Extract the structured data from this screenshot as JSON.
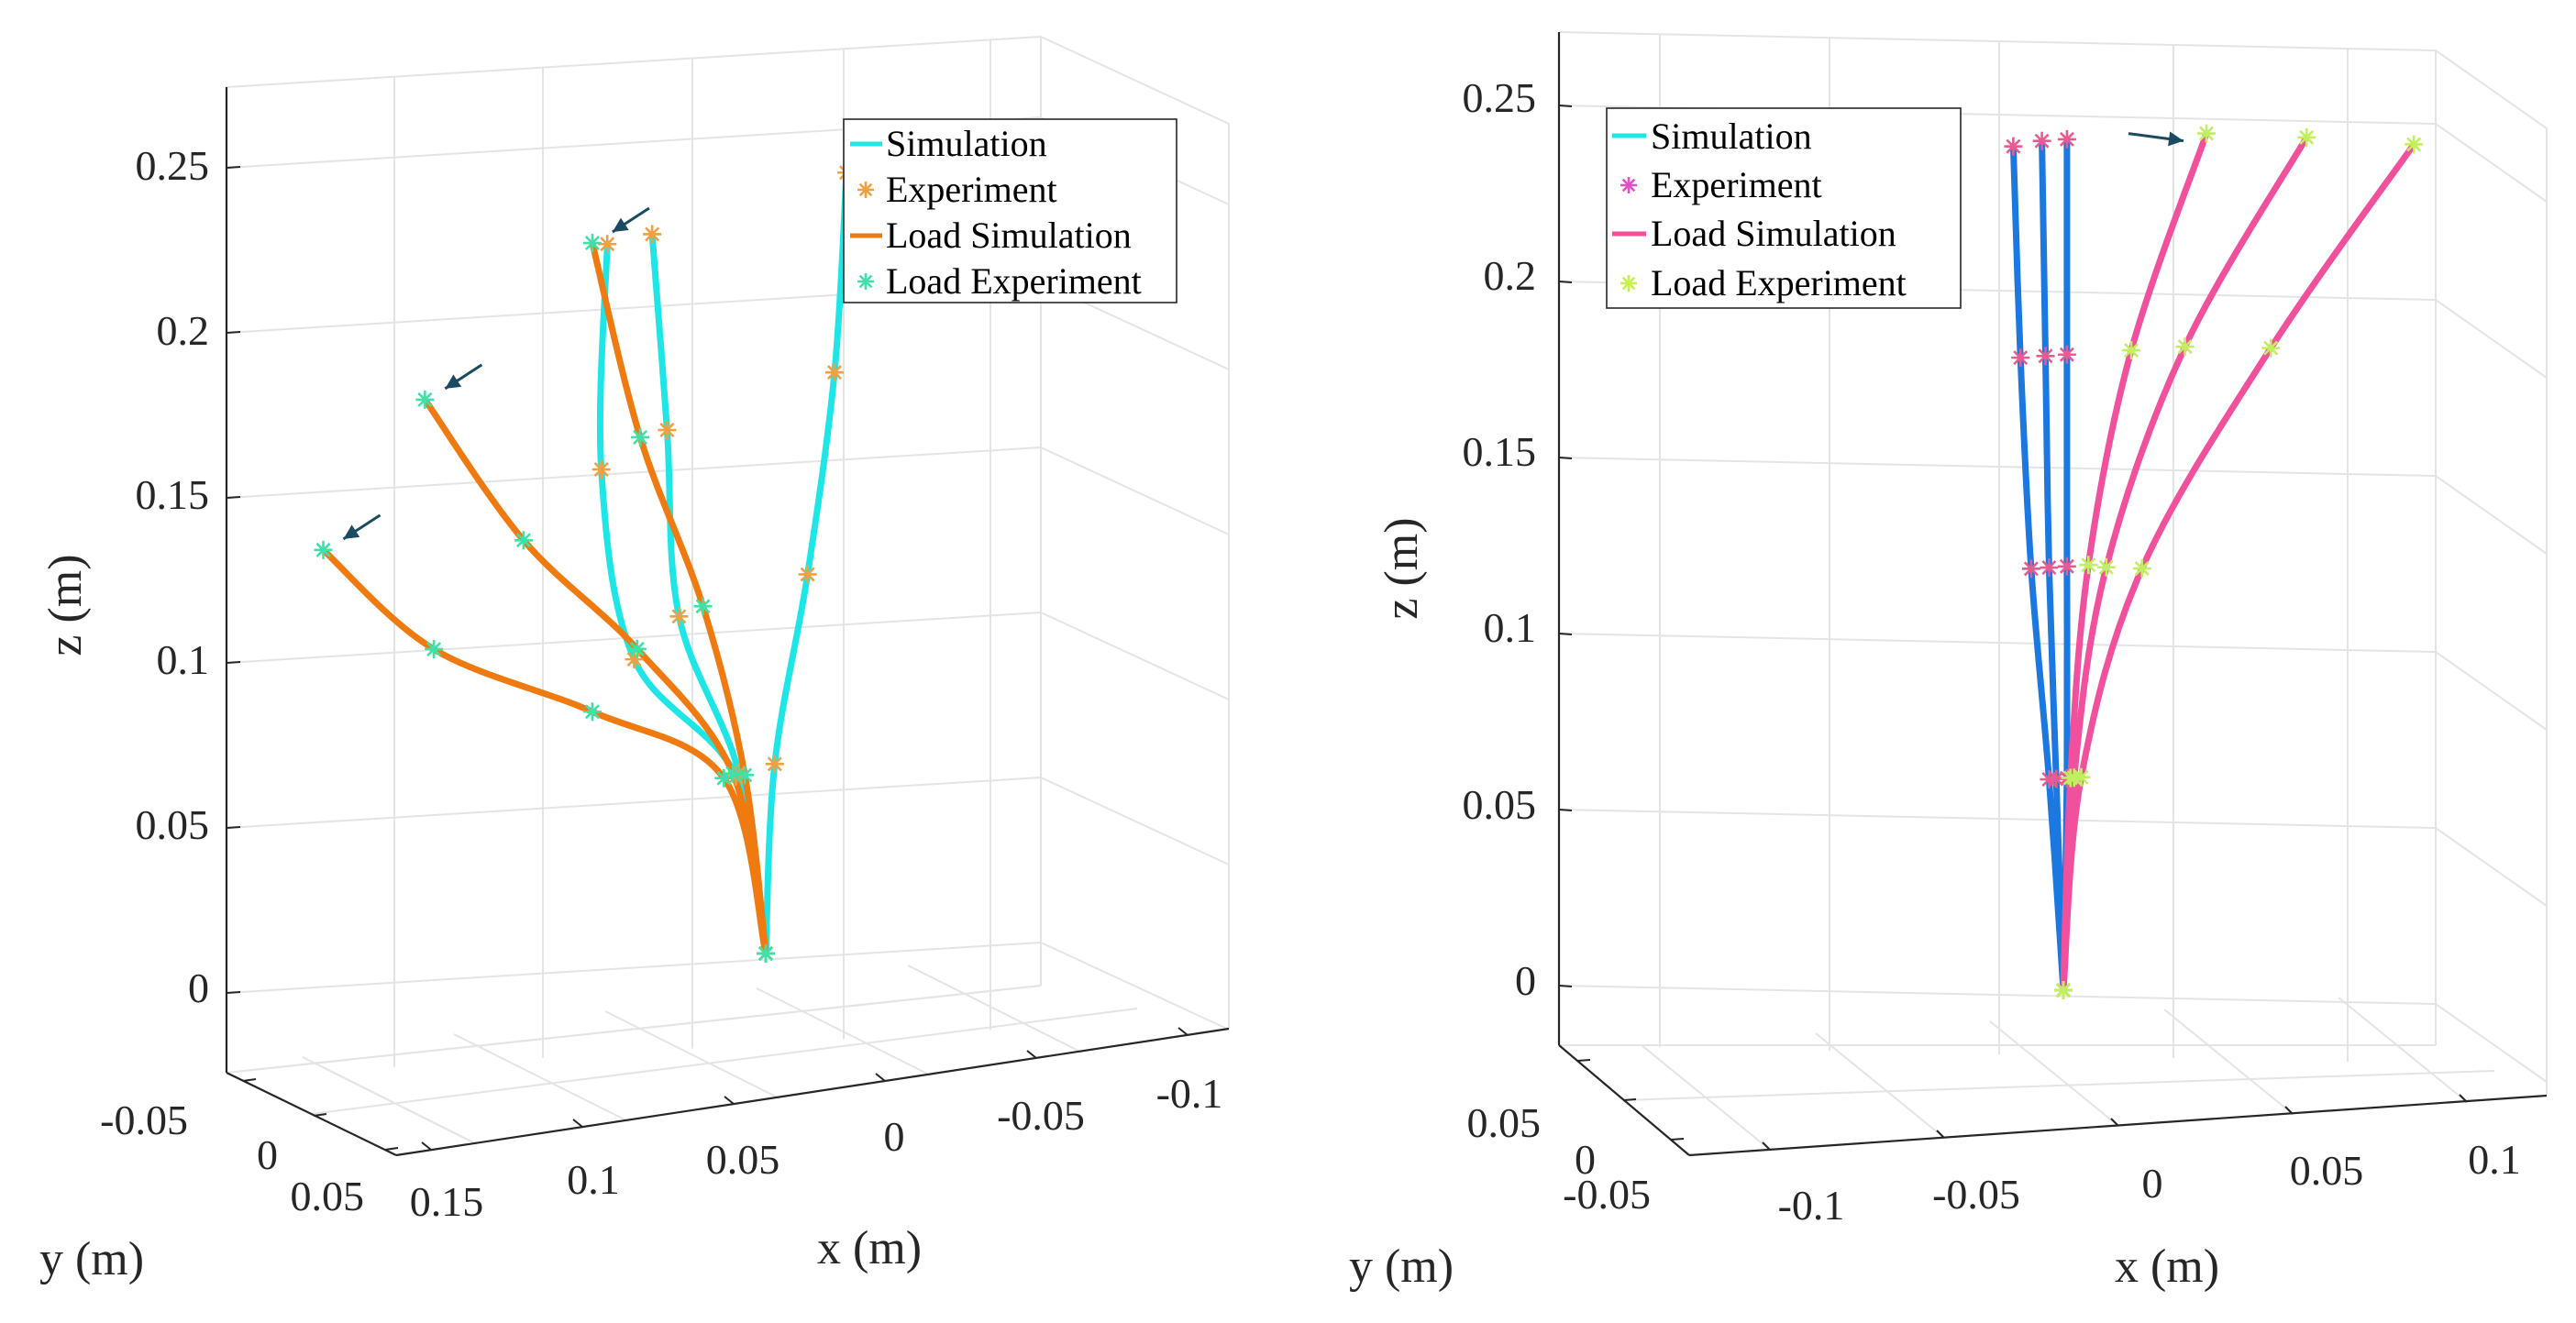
{
  "chart_data": [
    {
      "type": "line",
      "panel": "left",
      "xlabel": "x (m)",
      "ylabel": "y (m)",
      "zlabel": "z (m)",
      "xticks": [
        "0.15",
        "0.1",
        "0.05",
        "0",
        "-0.05",
        "-0.1"
      ],
      "yticks": [
        "-0.05",
        "0",
        "0.05"
      ],
      "zticks": [
        "0.25",
        "0.2",
        "0.15",
        "0.1",
        "0.05",
        "0"
      ],
      "zlim": [
        -0.02,
        0.27
      ],
      "legend": {
        "position": "top-right",
        "entries": [
          {
            "label": "Simulation",
            "kind": "line",
            "color": "#1ee6e6"
          },
          {
            "label": "Experiment",
            "kind": "star",
            "color": "#f0a040"
          },
          {
            "label": "Load Simulation",
            "kind": "line",
            "color": "#ee7a10"
          },
          {
            "label": "Load Experiment",
            "kind": "star",
            "color": "#40e0a8"
          }
        ]
      },
      "colors": {
        "simulation": "#1ee6e6",
        "experiment": "#f0a040",
        "load_simulation": "#ee7a10",
        "load_experiment": "#40e0a8",
        "arrow": "#1b4a63"
      },
      "series": [
        {
          "name": "Simulation 1",
          "kind": "simulation",
          "base": [
            0.0,
            0.0
          ],
          "tip": [
            -0.027,
            0.0,
            0.243
          ],
          "experiment": [
            [
              -0.027,
              0.0,
              0.243
            ],
            [
              -0.023,
              0.0,
              0.183
            ],
            [
              -0.014,
              0.0,
              0.123
            ],
            [
              -0.003,
              0.0,
              0.067
            ],
            [
              0.0,
              0.0,
              0.01
            ]
          ]
        },
        {
          "name": "Simulation 2",
          "kind": "simulation",
          "base": [
            0.0,
            0.0
          ],
          "tip": [
            0.038,
            0.0,
            0.233
          ],
          "experiment": [
            [
              0.038,
              0.0,
              0.233
            ],
            [
              0.033,
              0.0,
              0.173
            ],
            [
              0.029,
              0.0,
              0.116
            ],
            [
              0.009,
              0.0,
              0.066
            ],
            [
              0.0,
              0.0,
              0.01
            ]
          ]
        },
        {
          "name": "Simulation 3",
          "kind": "simulation",
          "base": [
            0.0,
            0.0
          ],
          "tip": [
            0.053,
            0.0,
            0.232
          ],
          "experiment": [
            [
              0.053,
              0.0,
              0.232
            ],
            [
              0.055,
              0.0,
              0.164
            ],
            [
              0.044,
              0.0,
              0.105
            ],
            [
              0.01,
              0.0,
              0.065
            ],
            [
              0.0,
              0.0,
              0.01
            ]
          ]
        },
        {
          "name": "Load Simulation 1",
          "kind": "load",
          "base": [
            0.0,
            0.0
          ],
          "tip": [
            0.058,
            0.0,
            0.233
          ],
          "experiment": [
            [
              0.058,
              0.0,
              0.233
            ],
            [
              0.042,
              0.0,
              0.172
            ],
            [
              0.021,
              0.0,
              0.118
            ],
            [
              0.007,
              0.0,
              0.065
            ],
            [
              0.0,
              0.0,
              0.01
            ]
          ]
        },
        {
          "name": "Load Simulation 2",
          "kind": "load",
          "base": [
            0.0,
            0.0
          ],
          "tip": [
            0.114,
            0.0,
            0.193
          ],
          "experiment": [
            [
              0.114,
              0.0,
              0.193
            ],
            [
              0.081,
              0.0,
              0.146
            ],
            [
              0.043,
              0.0,
              0.108
            ],
            [
              0.011,
              0.0,
              0.066
            ],
            [
              0.0,
              0.0,
              0.01
            ]
          ]
        },
        {
          "name": "Load Simulation 3",
          "kind": "load",
          "base": [
            0.0,
            0.0
          ],
          "tip": [
            0.148,
            0.0,
            0.152
          ],
          "experiment": [
            [
              0.148,
              0.0,
              0.152
            ],
            [
              0.111,
              0.0,
              0.117
            ],
            [
              0.058,
              0.0,
              0.091
            ],
            [
              0.014,
              0.0,
              0.065
            ],
            [
              0.0,
              0.0,
              0.01
            ]
          ]
        }
      ]
    },
    {
      "type": "line",
      "panel": "right",
      "xlabel": "x (m)",
      "ylabel": "y (m)",
      "zlabel": "z (m)",
      "xticks": [
        "-0.1",
        "-0.05",
        "0",
        "0.05",
        "0.1"
      ],
      "yticks": [
        "-0.05",
        "0",
        "0.05"
      ],
      "zticks": [
        "0.25",
        "0.2",
        "0.15",
        "0.1",
        "0.05",
        "0"
      ],
      "zlim": [
        -0.02,
        0.27
      ],
      "legend": {
        "position": "top-left",
        "entries": [
          {
            "label": "Simulation",
            "kind": "line",
            "color": "#1ee6e6"
          },
          {
            "label": "Experiment",
            "kind": "star",
            "color": "#e050c8"
          },
          {
            "label": "Load Simulation",
            "kind": "line",
            "color": "#f0509c"
          },
          {
            "label": "Load Experiment",
            "kind": "star",
            "color": "#c8f050"
          }
        ]
      },
      "colors": {
        "simulation": "#1a78e0",
        "experiment": "#e85a90",
        "load_simulation": "#f0509c",
        "load_experiment": "#c0f060",
        "arrow": "#1b4a63"
      },
      "series": [
        {
          "name": "Simulation 1",
          "kind": "simulation",
          "tip": [
            -0.014,
            0.0,
            0.24
          ],
          "experiment": [
            [
              -0.014,
              0.0,
              0.24
            ],
            [
              -0.012,
              0.0,
              0.18
            ],
            [
              -0.009,
              0.0,
              0.12
            ],
            [
              -0.004,
              0.0,
              0.06
            ],
            [
              0.0,
              0.0,
              0.0
            ]
          ]
        },
        {
          "name": "Simulation 2",
          "kind": "simulation",
          "tip": [
            -0.006,
            0.0,
            0.241
          ],
          "experiment": [
            [
              -0.006,
              0.0,
              0.241
            ],
            [
              -0.005,
              0.0,
              0.18
            ],
            [
              -0.004,
              0.0,
              0.12
            ],
            [
              -0.002,
              0.0,
              0.06
            ],
            [
              0.0,
              0.0,
              0.0
            ]
          ]
        },
        {
          "name": "Simulation 3",
          "kind": "simulation",
          "tip": [
            0.001,
            0.0,
            0.241
          ],
          "experiment": [
            [
              0.001,
              0.0,
              0.241
            ],
            [
              0.001,
              0.0,
              0.18
            ],
            [
              0.001,
              0.0,
              0.12
            ],
            [
              0.001,
              0.0,
              0.06
            ],
            [
              0.0,
              0.0,
              0.0
            ]
          ]
        },
        {
          "name": "Load Simulation 1",
          "kind": "load",
          "tip": [
            0.04,
            0.0,
            0.24
          ],
          "experiment": [
            [
              0.04,
              0.0,
              0.24
            ],
            [
              0.019,
              0.0,
              0.18
            ],
            [
              0.007,
              0.0,
              0.12
            ],
            [
              0.002,
              0.0,
              0.06
            ],
            [
              0.0,
              0.0,
              0.0
            ]
          ]
        },
        {
          "name": "Load Simulation 2",
          "kind": "load",
          "tip": [
            0.068,
            0.0,
            0.237
          ],
          "experiment": [
            [
              0.068,
              0.0,
              0.237
            ],
            [
              0.034,
              0.0,
              0.18
            ],
            [
              0.012,
              0.0,
              0.119
            ],
            [
              0.003,
              0.0,
              0.06
            ],
            [
              0.0,
              0.0,
              0.0
            ]
          ]
        },
        {
          "name": "Load Simulation 3",
          "kind": "load",
          "tip": [
            0.098,
            0.0,
            0.233
          ],
          "experiment": [
            [
              0.098,
              0.0,
              0.233
            ],
            [
              0.058,
              0.0,
              0.178
            ],
            [
              0.022,
              0.0,
              0.118
            ],
            [
              0.005,
              0.0,
              0.06
            ],
            [
              0.0,
              0.0,
              0.0
            ]
          ]
        }
      ]
    }
  ]
}
